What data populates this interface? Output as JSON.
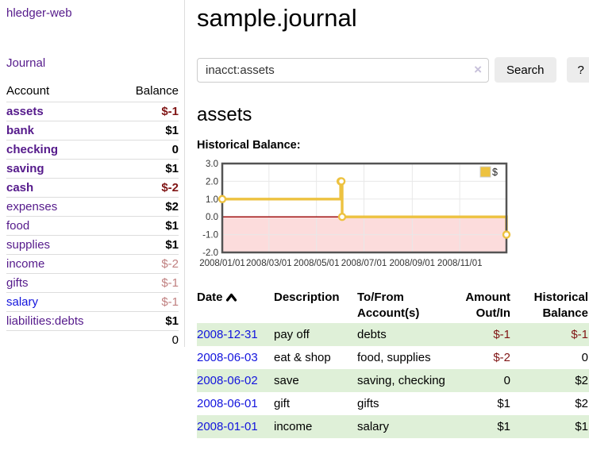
{
  "theme": {
    "purple": "#551a8b",
    "blue": "#1314dd",
    "negative_strong": "#801515",
    "negative_soft": "#c08080",
    "stripe_green": "#dff0d8",
    "chart_line_gold": "#edc240",
    "chart_negative_fill": "#fcdcdc",
    "chart_zero_line": "#990000",
    "chart_border": "#545454",
    "chart_grid": "#e8e8e8"
  },
  "app": {
    "title": "hledger-web"
  },
  "sidebar": {
    "journal_link": "Journal",
    "accounts": {
      "header_account": "Account",
      "header_balance": "Balance",
      "rows": [
        {
          "name": "assets",
          "balance": "$-1",
          "indent": 0,
          "bold": true,
          "balance_style": "neg-strong",
          "link_style": "purple"
        },
        {
          "name": "bank",
          "balance": "$1",
          "indent": 1,
          "bold": true,
          "balance_style": "",
          "link_style": "purple"
        },
        {
          "name": "checking",
          "balance": "0",
          "indent": 2,
          "bold": true,
          "balance_style": "",
          "link_style": "purple"
        },
        {
          "name": "saving",
          "balance": "$1",
          "indent": 2,
          "bold": true,
          "balance_style": "",
          "link_style": "purple"
        },
        {
          "name": "cash",
          "balance": "$-2",
          "indent": 1,
          "bold": true,
          "balance_style": "neg-strong",
          "link_style": "purple"
        },
        {
          "name": "expenses",
          "balance": "$2",
          "indent": 0,
          "bold": false,
          "balance_style": "",
          "link_style": "purple"
        },
        {
          "name": "food",
          "balance": "$1",
          "indent": 1,
          "bold": false,
          "balance_style": "",
          "link_style": "purple"
        },
        {
          "name": "supplies",
          "balance": "$1",
          "indent": 1,
          "bold": false,
          "balance_style": "",
          "link_style": "purple"
        },
        {
          "name": "income",
          "balance": "$-2",
          "indent": 0,
          "bold": false,
          "balance_style": "neg-soft",
          "link_style": "purple"
        },
        {
          "name": "gifts",
          "balance": "$-1",
          "indent": 1,
          "bold": false,
          "balance_style": "neg-soft",
          "link_style": "purple"
        },
        {
          "name": "salary",
          "balance": "$-1",
          "indent": 1,
          "bold": false,
          "balance_style": "neg-soft",
          "link_style": "blue"
        },
        {
          "name": "liabilities:debts",
          "balance": "$1",
          "indent": 0,
          "bold": false,
          "balance_style": "",
          "link_style": "purple"
        }
      ],
      "total": "0"
    }
  },
  "main": {
    "title": "sample.journal",
    "search": {
      "value": "inacct:assets",
      "clear_icon": "×",
      "button_label": "Search",
      "help_label": "?"
    },
    "account_heading": "assets",
    "chart_heading": "Historical Balance:",
    "register": {
      "headers": {
        "date": "Date",
        "description": "Description",
        "accounts": "To/From Account(s)",
        "amount": "Amount Out/In",
        "balance": "Historical Balance"
      },
      "rows": [
        {
          "date": "2008-12-31",
          "description": "pay off",
          "accounts": "debts",
          "amount": "$-1",
          "amount_negative": true,
          "balance": "$-1",
          "balance_negative": true
        },
        {
          "date": "2008-06-03",
          "description": "eat & shop",
          "accounts": "food, supplies",
          "amount": "$-2",
          "amount_negative": true,
          "balance": "0",
          "balance_negative": false
        },
        {
          "date": "2008-06-02",
          "description": "save",
          "accounts": "saving, checking",
          "amount": "0",
          "amount_negative": false,
          "balance": "$2",
          "balance_negative": false
        },
        {
          "date": "2008-06-01",
          "description": "gift",
          "accounts": "gifts",
          "amount": "$1",
          "amount_negative": false,
          "balance": "$2",
          "balance_negative": false
        },
        {
          "date": "2008-01-01",
          "description": "income",
          "accounts": "salary",
          "amount": "$1",
          "amount_negative": false,
          "balance": "$1",
          "balance_negative": false
        }
      ]
    }
  },
  "chart_data": {
    "type": "line",
    "step": true,
    "title": "Historical Balance:",
    "legend": "$",
    "legend_position": "top-right",
    "grid": true,
    "xlim": [
      "2008-01-01",
      "2008-12-31"
    ],
    "ylim": [
      -2,
      3
    ],
    "y_ticks": [
      "3.0",
      "2.0",
      "1.0",
      "0.0",
      "-1.0",
      "-2.0"
    ],
    "y_tick_values": [
      3,
      2,
      1,
      0,
      -1,
      -2
    ],
    "x_ticks": [
      "2008/01/01",
      "2008/03/01",
      "2008/05/01",
      "2008/07/01",
      "2008/09/01",
      "2008/11/01"
    ],
    "series": [
      {
        "name": "$",
        "points": [
          {
            "x": "2008-01-01",
            "y": 1
          },
          {
            "x": "2008-06-01",
            "y": 2
          },
          {
            "x": "2008-06-02",
            "y": 2
          },
          {
            "x": "2008-06-03",
            "y": 0
          },
          {
            "x": "2008-12-31",
            "y": -1
          }
        ]
      }
    ]
  }
}
